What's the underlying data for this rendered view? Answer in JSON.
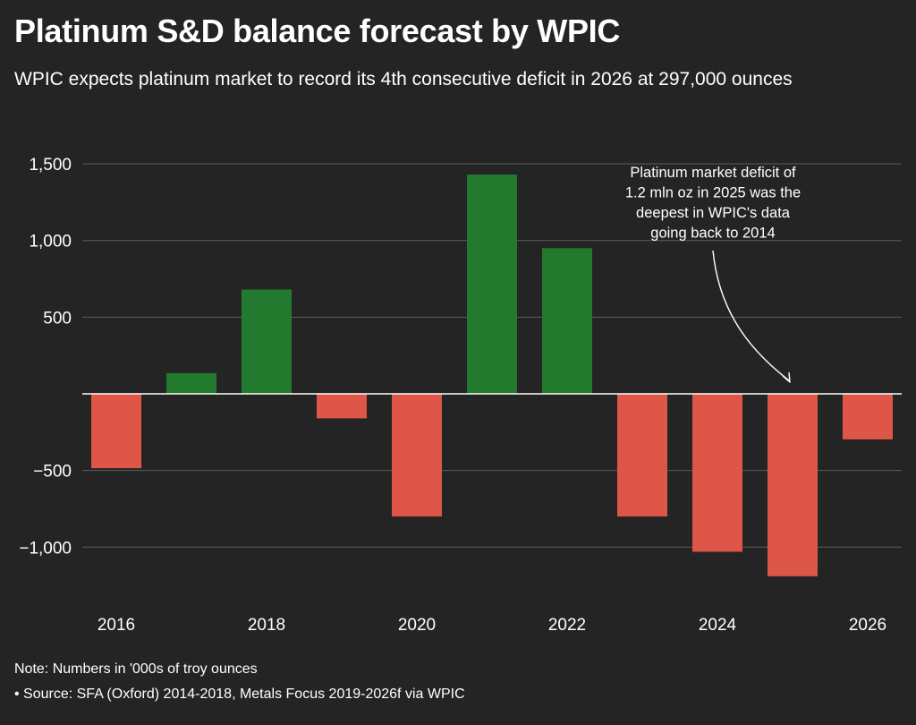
{
  "chart_data": {
    "type": "bar",
    "title": "Platinum S&D balance forecast by WPIC",
    "subtitle": "WPIC expects platinum market to record its 4th consecutive deficit in 2026 at 297,000 ounces",
    "x": [
      2016,
      2017,
      2018,
      2019,
      2020,
      2021,
      2022,
      2023,
      2024,
      2025,
      2026
    ],
    "x_tick_labels": [
      "2016",
      "2018",
      "2020",
      "2022",
      "2024",
      "2026"
    ],
    "x_tick_values": [
      2016,
      2018,
      2020,
      2022,
      2024,
      2026
    ],
    "values": [
      -485,
      135,
      680,
      -160,
      -800,
      1430,
      950,
      -800,
      -1030,
      -1190,
      -297
    ],
    "y_ticks": [
      1500,
      1000,
      500,
      -500,
      -1000
    ],
    "y_tick_labels": [
      "1,500",
      "1,000",
      "500",
      "−500",
      "−1,000"
    ],
    "ylim": [
      -1250,
      1500
    ],
    "xlabel": "",
    "ylabel": "",
    "grid": true,
    "colors": {
      "positive": "#237a2e",
      "negative": "#dd5648",
      "background": "#242424",
      "grid": "#5c5c5c"
    },
    "annotation": {
      "lines": [
        "Platinum market deficit of",
        "1.2 mln oz in 2025 was the",
        "deepest in WPIC's data",
        "going back to 2014"
      ],
      "target_x": 2025
    }
  },
  "footer": {
    "note": "Note: Numbers in '000s of troy ounces",
    "source": "• Source: SFA (Oxford) 2014-2018, Metals Focus 2019-2026f via WPIC"
  }
}
